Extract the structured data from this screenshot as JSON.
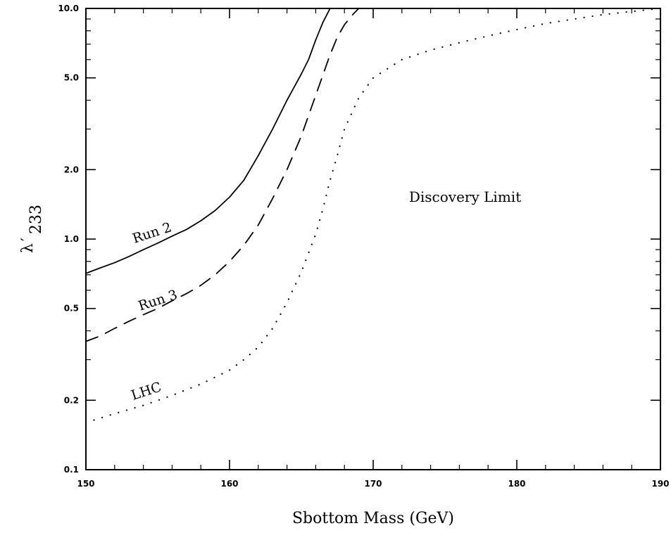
{
  "chart_data": {
    "type": "line",
    "title": "",
    "xlabel": "Sbottom  Mass (GeV)",
    "ylabel": {
      "main": "λ",
      "prime": "′",
      "subscript": "233"
    },
    "xlim": [
      150,
      190
    ],
    "ylim": [
      0.1,
      10.0
    ],
    "yscale": "log",
    "grid": false,
    "legend": "none",
    "x_ticks": [
      150,
      160,
      170,
      180,
      190
    ],
    "x_tick_labels": [
      "150",
      "160",
      "170",
      "180",
      "190"
    ],
    "y_ticks": [
      0.1,
      0.2,
      0.5,
      1.0,
      2.0,
      5.0,
      10.0
    ],
    "y_tick_labels": [
      "0.1",
      "0.2",
      "0.5",
      "1.0",
      "2.0",
      "5.0",
      "10.0"
    ],
    "series": [
      {
        "name": "Run 2",
        "style": "solid",
        "label_x": 154.7,
        "label_y": 1.02,
        "x": [
          150,
          151,
          152,
          153,
          154,
          155,
          156,
          157,
          158,
          159,
          160,
          161,
          162,
          163,
          164,
          165,
          165.5,
          166,
          166.5,
          167
        ],
        "y": [
          0.71,
          0.75,
          0.79,
          0.84,
          0.9,
          0.96,
          1.03,
          1.1,
          1.2,
          1.33,
          1.52,
          1.8,
          2.3,
          3.0,
          4.0,
          5.2,
          6.0,
          7.3,
          8.7,
          10.0
        ]
      },
      {
        "name": "Run 3",
        "style": "dashed",
        "label_x": 155.1,
        "label_y": 0.52,
        "x": [
          150,
          151,
          152,
          153,
          154,
          155,
          156,
          157,
          158,
          159,
          160,
          161,
          162,
          163,
          164,
          165,
          166,
          167,
          167.5,
          168,
          168.5,
          169
        ],
        "y": [
          0.36,
          0.38,
          0.41,
          0.44,
          0.47,
          0.5,
          0.54,
          0.58,
          0.63,
          0.7,
          0.8,
          0.94,
          1.15,
          1.5,
          2.0,
          2.8,
          4.2,
          6.3,
          7.5,
          8.5,
          9.3,
          10.0
        ]
      },
      {
        "name": "LHC",
        "style": "dotted",
        "label_x": 154.3,
        "label_y": 0.21,
        "x": [
          150,
          152,
          154,
          156,
          158,
          160,
          161,
          162,
          163,
          164,
          165,
          166,
          166.5,
          167,
          167.5,
          168,
          169,
          170,
          172,
          174,
          176,
          178,
          180,
          182,
          184,
          186,
          188,
          190
        ],
        "y": [
          0.16,
          0.175,
          0.19,
          0.21,
          0.235,
          0.27,
          0.3,
          0.34,
          0.41,
          0.53,
          0.72,
          1.05,
          1.35,
          1.8,
          2.3,
          3.0,
          4.1,
          5.0,
          6.0,
          6.6,
          7.1,
          7.6,
          8.1,
          8.6,
          9.0,
          9.4,
          9.7,
          10.0
        ]
      }
    ],
    "annotations": [
      {
        "text": "Discovery Limit",
        "x": 176.4,
        "y": 1.45
      }
    ]
  }
}
